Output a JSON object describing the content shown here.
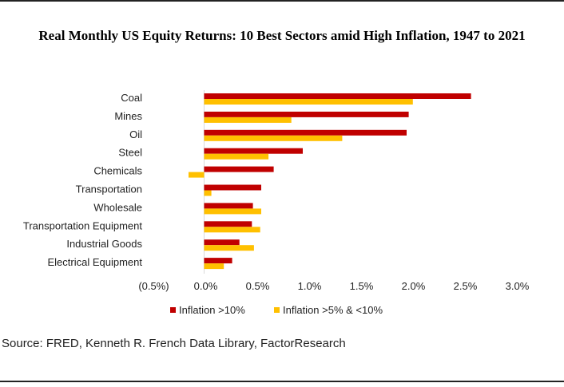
{
  "title": "Real Monthly US Equity Returns: 10 Best Sectors amid High Inflation, 1947 to 2021",
  "source": "Source: FRED, Kenneth R. French Data Library, FactorResearch",
  "chart_data": {
    "type": "bar",
    "orientation": "horizontal",
    "title": "Real Monthly US Equity Returns: 10 Best Sectors amid High Inflation, 1947 to 2021",
    "categories": [
      "Coal",
      "Mines",
      "Oil",
      "Steel",
      "Chemicals",
      "Transportation",
      "Wholesale",
      "Transportation Equipment",
      "Industrial Goods",
      "Electrical Equipment"
    ],
    "series": [
      {
        "name": "Inflation >10%",
        "color": "#c00000",
        "values": [
          2.57,
          1.97,
          1.95,
          0.95,
          0.67,
          0.55,
          0.47,
          0.46,
          0.34,
          0.27
        ]
      },
      {
        "name": "Inflation >5% & <10%",
        "color": "#ffc000",
        "values": [
          2.01,
          0.84,
          1.33,
          0.62,
          -0.15,
          0.07,
          0.55,
          0.54,
          0.48,
          0.19
        ]
      }
    ],
    "xlim": [
      -0.5,
      3.0
    ],
    "xticks": [
      "(0.5%)",
      "0.0%",
      "0.5%",
      "1.0%",
      "1.5%",
      "2.0%",
      "2.5%",
      "3.0%"
    ],
    "grid": false,
    "legend": "bottom"
  }
}
